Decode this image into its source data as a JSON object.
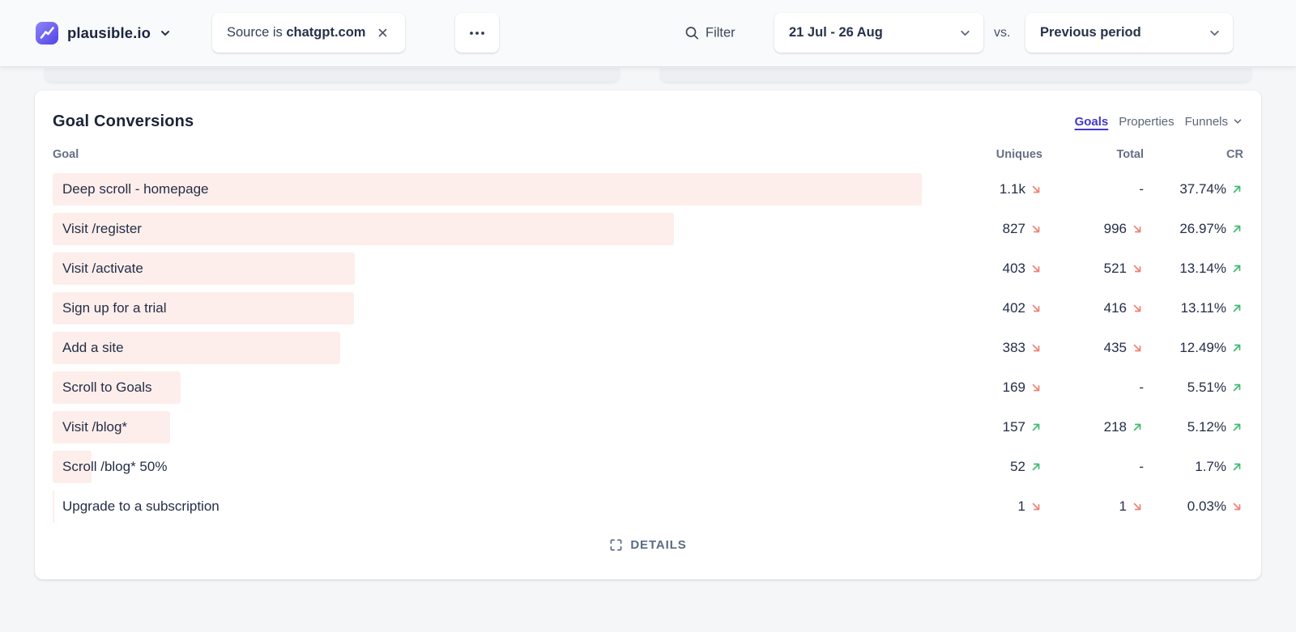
{
  "topbar": {
    "site_name": "plausible.io",
    "filter_chip": {
      "prefix": "Source is",
      "value": "chatgpt.com"
    },
    "filter_label": "Filter",
    "date_range": "21 Jul - 26 Aug",
    "vs_label": "vs.",
    "comparison": "Previous period"
  },
  "panel": {
    "title": "Goal Conversions",
    "tabs": [
      {
        "label": "Goals",
        "active": true
      },
      {
        "label": "Properties",
        "active": false
      },
      {
        "label": "Funnels",
        "active": false
      }
    ],
    "details_label": "DETAILS"
  },
  "table": {
    "goal_header": "Goal",
    "columns": [
      "Uniques",
      "Total",
      "CR"
    ],
    "rows": [
      {
        "goal": "Deep scroll - homepage",
        "uniques": "1.1k",
        "uniques_dir": "down",
        "total": "-",
        "total_dir": null,
        "cr": "37.74%",
        "cr_dir": "up",
        "bar_pct": 100
      },
      {
        "goal": "Visit /register",
        "uniques": "827",
        "uniques_dir": "down",
        "total": "996",
        "total_dir": "down",
        "cr": "26.97%",
        "cr_dir": "up",
        "bar_pct": 71.5
      },
      {
        "goal": "Visit /activate",
        "uniques": "403",
        "uniques_dir": "down",
        "total": "521",
        "total_dir": "down",
        "cr": "13.14%",
        "cr_dir": "up",
        "bar_pct": 34.8
      },
      {
        "goal": "Sign up for a trial",
        "uniques": "402",
        "uniques_dir": "down",
        "total": "416",
        "total_dir": "down",
        "cr": "13.11%",
        "cr_dir": "up",
        "bar_pct": 34.7
      },
      {
        "goal": "Add a site",
        "uniques": "383",
        "uniques_dir": "down",
        "total": "435",
        "total_dir": "down",
        "cr": "12.49%",
        "cr_dir": "up",
        "bar_pct": 33.1
      },
      {
        "goal": "Scroll to Goals",
        "uniques": "169",
        "uniques_dir": "down",
        "total": "-",
        "total_dir": null,
        "cr": "5.51%",
        "cr_dir": "up",
        "bar_pct": 14.7
      },
      {
        "goal": "Visit /blog*",
        "uniques": "157",
        "uniques_dir": "up",
        "total": "218",
        "total_dir": "up",
        "cr": "5.12%",
        "cr_dir": "up",
        "bar_pct": 13.5
      },
      {
        "goal": "Scroll /blog* 50%",
        "uniques": "52",
        "uniques_dir": "up",
        "total": "-",
        "total_dir": null,
        "cr": "1.7%",
        "cr_dir": "up",
        "bar_pct": 4.5
      },
      {
        "goal": "Upgrade to a subscription",
        "uniques": "1",
        "uniques_dir": "down",
        "total": "1",
        "total_dir": "down",
        "cr": "0.03%",
        "cr_dir": "down",
        "bar_pct": 0.2
      }
    ]
  },
  "colors": {
    "brand_indigo": "#4338ca",
    "bar_pink": "#fdeeeb",
    "positive_green": "#43ba70",
    "negative_red": "#ee8276"
  }
}
